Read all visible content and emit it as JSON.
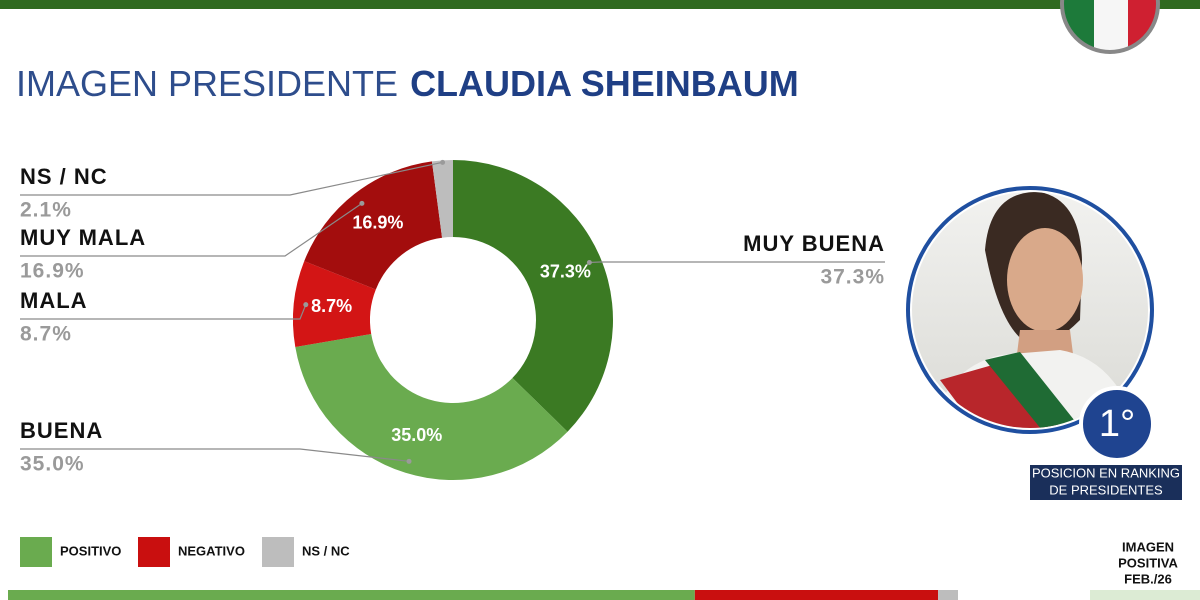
{
  "chart_data": {
    "type": "donut",
    "title": "IMAGEN PRESIDENTE",
    "title_name": "CLAUDIA SHEINBAUM",
    "categories": [
      "MUY BUENA",
      "BUENA",
      "MALA",
      "MUY MALA",
      "NS / NC"
    ],
    "values": [
      37.3,
      35.0,
      8.7,
      16.9,
      2.1
    ],
    "value_labels": [
      "37.3%",
      "35.0%",
      "8.7%",
      "16.9%",
      "2.1%"
    ],
    "colors": [
      "#3b7a23",
      "#6aab4f",
      "#d31515",
      "#a30d0d",
      "#bdbdbd"
    ],
    "legend": [
      {
        "name": "POSITIVO",
        "color": "#6aab4f"
      },
      {
        "name": "NEGATIVO",
        "color": "#c90f0f"
      },
      {
        "name": "NS / NC",
        "color": "#bdbdbd"
      }
    ],
    "summary_bar": [
      72.3,
      25.6,
      2.1
    ],
    "badge": "1°",
    "badge_caption": [
      "POSICION EN RANKING",
      "DE PRESIDENTES"
    ],
    "side_caption": [
      "IMAGEN",
      "POSITIVA",
      "FEB./26"
    ]
  }
}
